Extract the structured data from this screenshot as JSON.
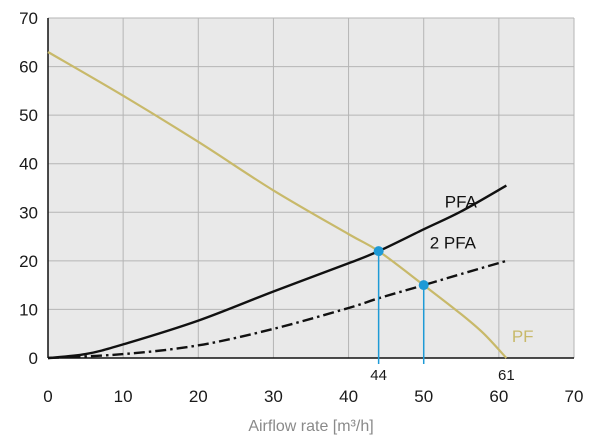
{
  "chart_data": {
    "type": "line",
    "title": "",
    "xlabel": "Airflow rate [m³/h]",
    "ylabel": "",
    "xlim": [
      0,
      70
    ],
    "ylim": [
      0,
      70
    ],
    "xticks": [
      0,
      10,
      20,
      30,
      40,
      50,
      60,
      70
    ],
    "yticks": [
      0,
      10,
      20,
      30,
      40,
      50,
      60,
      70
    ],
    "grid": true,
    "series": [
      {
        "name": "PF",
        "color": "#c8b96a",
        "style": "solid",
        "x": [
          0,
          10,
          20,
          30,
          40,
          44,
          50,
          55,
          58,
          61
        ],
        "y": [
          63,
          54,
          44.5,
          34.5,
          25.5,
          22,
          15,
          9,
          5,
          0
        ]
      },
      {
        "name": "PFA",
        "color": "#111111",
        "style": "solid",
        "x": [
          0,
          5,
          10,
          20,
          30,
          40,
          44,
          50,
          55,
          61
        ],
        "y": [
          0,
          0.8,
          2.8,
          7.7,
          13.7,
          19.5,
          22,
          26.5,
          30.2,
          35.5
        ]
      },
      {
        "name": "2 PFA",
        "color": "#111111",
        "style": "dashdot",
        "x": [
          0,
          10,
          20,
          30,
          40,
          44,
          50,
          55,
          61
        ],
        "y": [
          0,
          0.8,
          2.6,
          6,
          10.3,
          12.3,
          15,
          17.3,
          20
        ]
      }
    ],
    "intersections": [
      {
        "x": 44,
        "y": 22,
        "label": "44"
      },
      {
        "x": 50,
        "y": 15,
        "label": ""
      }
    ],
    "annotations": [
      {
        "x": 61,
        "label": "61"
      }
    ],
    "colors": {
      "grid": "#b5b5b5",
      "plot_bg": "#e9e9e9",
      "marker": "#1e9ad6"
    }
  }
}
